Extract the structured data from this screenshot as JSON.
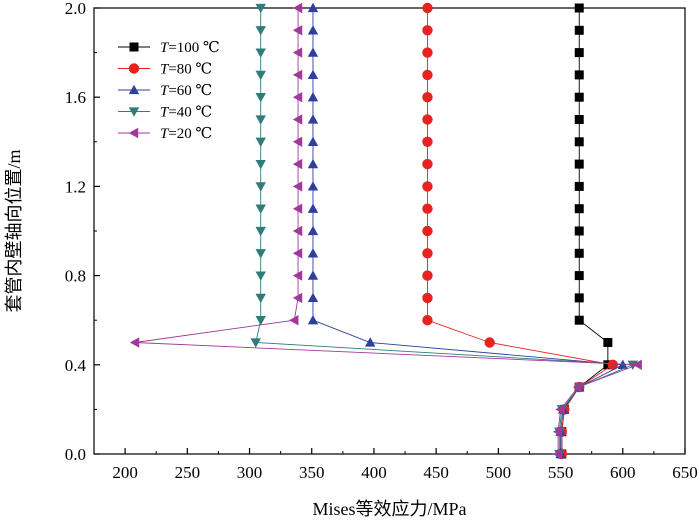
{
  "chart_data": {
    "type": "line",
    "title": "",
    "xlabel": "Mises等效应力/MPa",
    "ylabel": "套管内壁轴向位置/m",
    "xlim": [
      175,
      650
    ],
    "ylim": [
      0,
      2.0
    ],
    "xticks": [
      200,
      250,
      300,
      350,
      400,
      450,
      500,
      550,
      600,
      650
    ],
    "yticks": [
      0.0,
      0.4,
      0.8,
      1.2,
      1.6,
      2.0
    ],
    "ytick_labels": [
      "0.0",
      "0.4",
      "0.8",
      "1.2",
      "1.6",
      "2.0"
    ],
    "grid": false,
    "legend_position": "top-left",
    "legend_var": "T",
    "series": [
      {
        "name": "T=100 ℃",
        "legend_value": "=100 ℃",
        "color": "#000000",
        "marker": "square",
        "points": [
          [
            551,
            0.0
          ],
          [
            551,
            0.1
          ],
          [
            553,
            0.2
          ],
          [
            565,
            0.3
          ],
          [
            588,
            0.4
          ],
          [
            588,
            0.5
          ],
          [
            565,
            0.6
          ],
          [
            565,
            0.7
          ],
          [
            565,
            0.8
          ],
          [
            565,
            0.9
          ],
          [
            565,
            1.0
          ],
          [
            565,
            1.1
          ],
          [
            565,
            1.2
          ],
          [
            565,
            1.3
          ],
          [
            565,
            1.4
          ],
          [
            565,
            1.5
          ],
          [
            565,
            1.6
          ],
          [
            565,
            1.7
          ],
          [
            565,
            1.8
          ],
          [
            565,
            1.9
          ],
          [
            565,
            2.0
          ]
        ]
      },
      {
        "name": "T=80 ℃",
        "legend_value": "=80 ℃",
        "color": "#e8231f",
        "marker": "circle",
        "points": [
          [
            551,
            0.0
          ],
          [
            551,
            0.1
          ],
          [
            553,
            0.2
          ],
          [
            565,
            0.3
          ],
          [
            592,
            0.4
          ],
          [
            493,
            0.5
          ],
          [
            443,
            0.6
          ],
          [
            443,
            0.7
          ],
          [
            443,
            0.8
          ],
          [
            443,
            0.9
          ],
          [
            443,
            1.0
          ],
          [
            443,
            1.1
          ],
          [
            443,
            1.2
          ],
          [
            443,
            1.3
          ],
          [
            443,
            1.4
          ],
          [
            443,
            1.5
          ],
          [
            443,
            1.6
          ],
          [
            443,
            1.7
          ],
          [
            443,
            1.8
          ],
          [
            443,
            1.9
          ],
          [
            443,
            2.0
          ]
        ]
      },
      {
        "name": "T=60 ℃",
        "legend_value": "=60 ℃",
        "color": "#2f3f9e",
        "marker": "triangle-up",
        "points": [
          [
            550,
            0.0
          ],
          [
            550,
            0.1
          ],
          [
            552,
            0.2
          ],
          [
            565,
            0.3
          ],
          [
            600,
            0.4
          ],
          [
            397,
            0.5
          ],
          [
            351,
            0.6
          ],
          [
            351,
            0.7
          ],
          [
            351,
            0.8
          ],
          [
            351,
            0.9
          ],
          [
            351,
            1.0
          ],
          [
            351,
            1.1
          ],
          [
            351,
            1.2
          ],
          [
            351,
            1.3
          ],
          [
            351,
            1.4
          ],
          [
            351,
            1.5
          ],
          [
            351,
            1.6
          ],
          [
            351,
            1.7
          ],
          [
            351,
            1.8
          ],
          [
            351,
            1.9
          ],
          [
            351,
            2.0
          ]
        ]
      },
      {
        "name": "T=40 ℃",
        "legend_value": "=40 ℃",
        "color": "#2e7d7a",
        "marker": "triangle-down",
        "points": [
          [
            549,
            0.0
          ],
          [
            549,
            0.1
          ],
          [
            551,
            0.2
          ],
          [
            565,
            0.3
          ],
          [
            608,
            0.4
          ],
          [
            305,
            0.5
          ],
          [
            309,
            0.6
          ],
          [
            309,
            0.7
          ],
          [
            309,
            0.8
          ],
          [
            309,
            0.9
          ],
          [
            309,
            1.0
          ],
          [
            309,
            1.1
          ],
          [
            309,
            1.2
          ],
          [
            309,
            1.3
          ],
          [
            309,
            1.4
          ],
          [
            309,
            1.5
          ],
          [
            309,
            1.6
          ],
          [
            309,
            1.7
          ],
          [
            309,
            1.8
          ],
          [
            309,
            1.9
          ],
          [
            309,
            2.0
          ]
        ]
      },
      {
        "name": "T=20 ℃",
        "legend_value": "=20 ℃",
        "color": "#a0399a",
        "marker": "triangle-left",
        "points": [
          [
            548,
            0.0
          ],
          [
            548,
            0.1
          ],
          [
            550,
            0.2
          ],
          [
            564,
            0.3
          ],
          [
            612,
            0.4
          ],
          [
            208,
            0.5
          ],
          [
            336,
            0.6
          ],
          [
            339,
            0.7
          ],
          [
            339,
            0.8
          ],
          [
            339,
            0.9
          ],
          [
            339,
            1.0
          ],
          [
            339,
            1.1
          ],
          [
            339,
            1.2
          ],
          [
            339,
            1.3
          ],
          [
            339,
            1.4
          ],
          [
            339,
            1.5
          ],
          [
            339,
            1.6
          ],
          [
            339,
            1.7
          ],
          [
            339,
            1.8
          ],
          [
            339,
            1.9
          ],
          [
            339,
            2.0
          ]
        ]
      }
    ]
  }
}
